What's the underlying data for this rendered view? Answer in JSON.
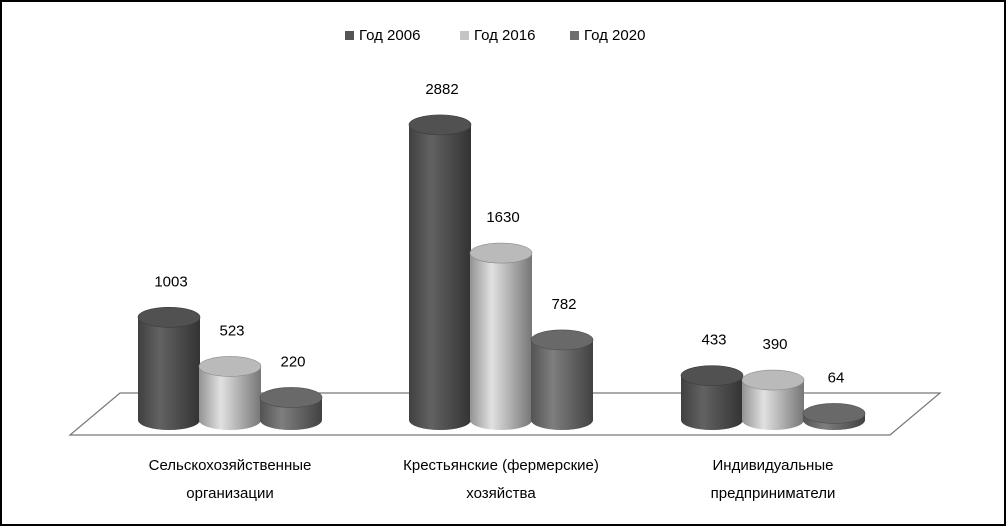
{
  "chart_data": {
    "type": "bar3d",
    "categories": [
      "Сельскохозяйственные организации",
      "Крестьянские (фермерские) хозяйства",
      "Индивидуальные предприниматели"
    ],
    "series": [
      {
        "name": "Год 2006",
        "color": "#555555",
        "values": [
          1003,
          2882,
          433
        ]
      },
      {
        "name": "Год 2016",
        "color": "#c4c4c4",
        "values": [
          523,
          1630,
          390
        ]
      },
      {
        "name": "Год 2020",
        "color": "#6e6e6e",
        "values": [
          220,
          782,
          64
        ]
      }
    ],
    "legend": "top"
  }
}
